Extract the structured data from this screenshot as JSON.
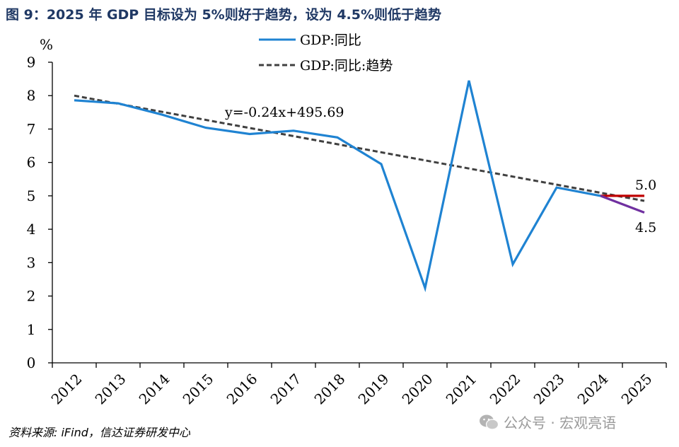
{
  "title": "图 9：2025 年 GDP 目标设为 5%则好于趋势，设为 4.5%则低于趋势",
  "source": "资料来源: iFind，信达证券研发中心",
  "watermark": "公众号 · 宏观亮语",
  "chart_data": {
    "type": "line",
    "title": "图 9：2025 年 GDP 目标设为 5%则好于趋势，设为 4.5%则低于趋势",
    "ylabel": "%",
    "xlabel": "",
    "ylim": [
      0,
      9
    ],
    "yticks": [
      0,
      1,
      2,
      3,
      4,
      5,
      6,
      7,
      8,
      9
    ],
    "categories": [
      "2012",
      "2013",
      "2014",
      "2015",
      "2016",
      "2017",
      "2018",
      "2019",
      "2020",
      "2021",
      "2022",
      "2023",
      "2024",
      "2025"
    ],
    "legend_position": "top-center",
    "grid": false,
    "series": [
      {
        "name": "GDP:同比",
        "style": "solid",
        "color": "#1f83d2",
        "x": [
          "2012",
          "2013",
          "2014",
          "2015",
          "2016",
          "2017",
          "2018",
          "2019",
          "2020",
          "2021",
          "2022",
          "2023",
          "2024"
        ],
        "values": [
          7.86,
          7.77,
          7.43,
          7.04,
          6.85,
          6.95,
          6.75,
          5.95,
          2.24,
          8.45,
          2.95,
          5.25,
          5.0
        ]
      },
      {
        "name": "GDP:同比:趋势",
        "style": "dashed",
        "color": "#404040",
        "x": [
          "2012",
          "2025"
        ],
        "values": [
          8.0,
          4.85
        ]
      },
      {
        "name": "",
        "style": "solid",
        "color": "#c00000",
        "x": [
          "2024",
          "2025"
        ],
        "values": [
          5.0,
          5.0
        ]
      },
      {
        "name": "",
        "style": "solid",
        "color": "#7030a0",
        "x": [
          "2024",
          "2025"
        ],
        "values": [
          5.0,
          4.5
        ]
      }
    ],
    "annotations": [
      {
        "text": "y=-0.24x+495.69"
      },
      {
        "text": "5.0"
      },
      {
        "text": "4.5"
      }
    ]
  }
}
